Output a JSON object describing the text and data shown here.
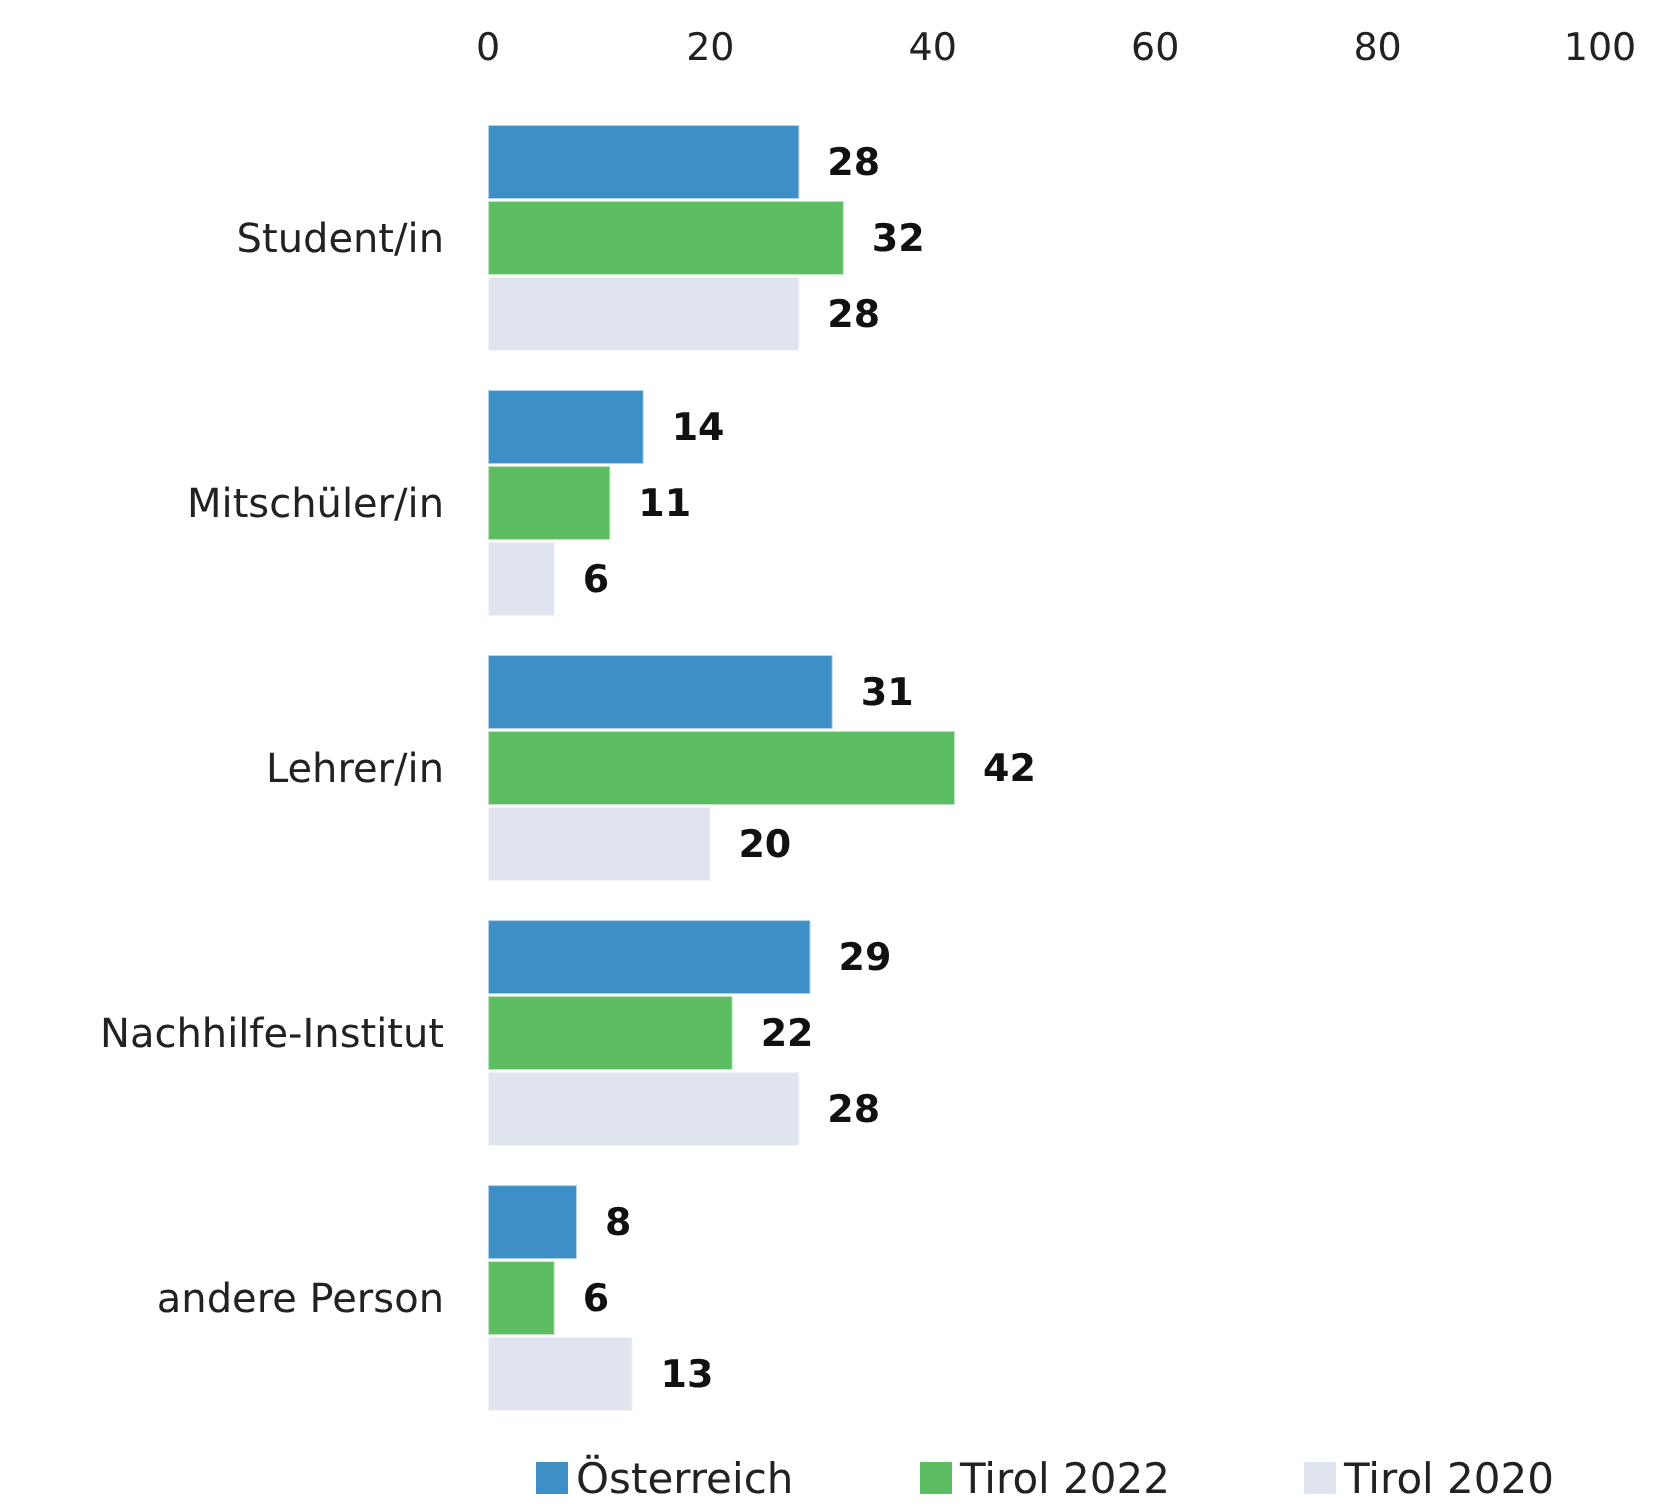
{
  "chart_data": {
    "type": "bar",
    "orientation": "horizontal",
    "categories": [
      "Student/in",
      "Mitschüler/in",
      "Lehrer/in",
      "Nachhilfe-Institut",
      "andere Person"
    ],
    "series": [
      {
        "name": "Österreich",
        "color": "#3d8fc6",
        "values": [
          28,
          14,
          31,
          29,
          8
        ]
      },
      {
        "name": "Tirol 2022",
        "color": "#5dbd62",
        "values": [
          32,
          11,
          42,
          22,
          6
        ]
      },
      {
        "name": "Tirol 2020",
        "color": "#dfe4ee",
        "values": [
          28,
          6,
          20,
          28,
          13
        ]
      }
    ],
    "xlim": [
      0,
      100
    ],
    "xticks": [
      0,
      20,
      40,
      60,
      80,
      100
    ],
    "data_labels": true,
    "legend": "bottom",
    "grid": false
  }
}
